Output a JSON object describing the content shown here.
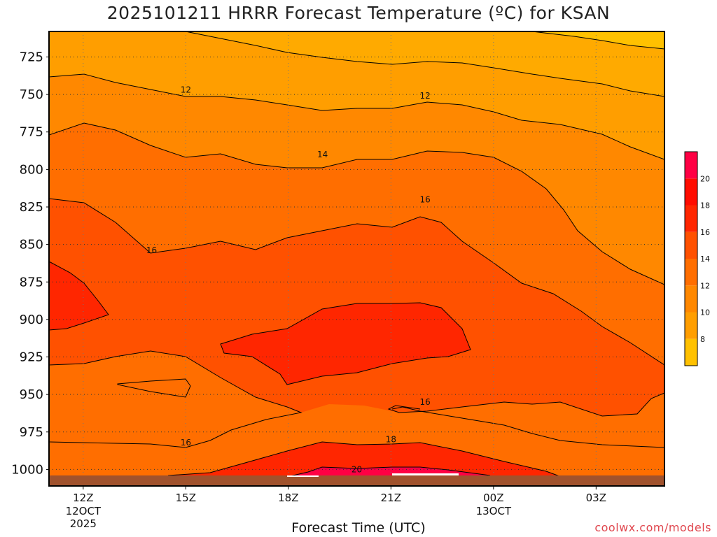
{
  "title": "2025101211 HRRR Forecast Temperature (ºC) for KSAN",
  "credit": "coolwx.com/models",
  "chart_data": {
    "type": "contour",
    "title": "2025101211 HRRR Forecast Temperature (ºC) for KSAN",
    "xlabel": "Forecast Time (UTC)",
    "ylabel": "",
    "x_ticks": [
      {
        "label": "12Z",
        "sub": [
          "12OCT",
          "2025"
        ],
        "hour": 12
      },
      {
        "label": "15Z",
        "sub": [],
        "hour": 15
      },
      {
        "label": "18Z",
        "sub": [],
        "hour": 18
      },
      {
        "label": "21Z",
        "sub": [],
        "hour": 21
      },
      {
        "label": "00Z",
        "sub": [
          "13OCT"
        ],
        "hour": 24
      },
      {
        "label": "03Z",
        "sub": [],
        "hour": 27
      }
    ],
    "x_range_hours": [
      11,
      29
    ],
    "y_ticks": [
      725,
      750,
      775,
      800,
      825,
      850,
      875,
      900,
      925,
      950,
      975,
      1000
    ],
    "y_range_hPa": [
      708,
      1011
    ],
    "y_axis": "pressure (hPa), inverted",
    "contour_interval": 2,
    "contour_labels": [
      {
        "value": 12,
        "hour": 15.0,
        "p": 747
      },
      {
        "value": 12,
        "hour": 22.0,
        "p": 751
      },
      {
        "value": 14,
        "hour": 19.0,
        "p": 790
      },
      {
        "value": 16,
        "hour": 14.0,
        "p": 854
      },
      {
        "value": 16,
        "hour": 22.0,
        "p": 820
      },
      {
        "value": 16,
        "hour": 22.0,
        "p": 955
      },
      {
        "value": 16,
        "hour": 15.0,
        "p": 982
      },
      {
        "value": 18,
        "hour": 21.0,
        "p": 980
      },
      {
        "value": 20,
        "hour": 20.0,
        "p": 1000
      }
    ],
    "colorbar": {
      "labels": [
        8,
        10,
        12,
        14,
        16,
        18,
        20
      ],
      "colors": [
        "#ffc100",
        "#ff9e00",
        "#ff8800",
        "#ff6e00",
        "#ff5100",
        "#ff2600",
        "#ff0c00",
        "#ff0044"
      ]
    },
    "grid": true,
    "surface_color": "#a0522d"
  }
}
